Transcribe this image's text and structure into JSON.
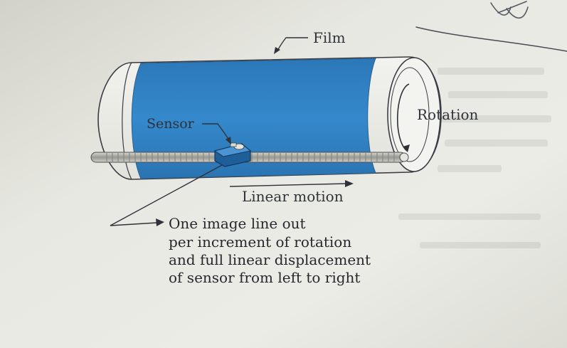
{
  "labels": {
    "film": "Film",
    "sensor": "Sensor",
    "rotation": "Rotation",
    "linear_motion": "Linear motion"
  },
  "note_lines": [
    "One image line out",
    "per increment of rotation",
    "and full linear displacement",
    "of sensor from left to right"
  ],
  "colors": {
    "paper": "#e9e9e3",
    "film_blue": "#2f7fc1",
    "ink": "#2f3238"
  }
}
